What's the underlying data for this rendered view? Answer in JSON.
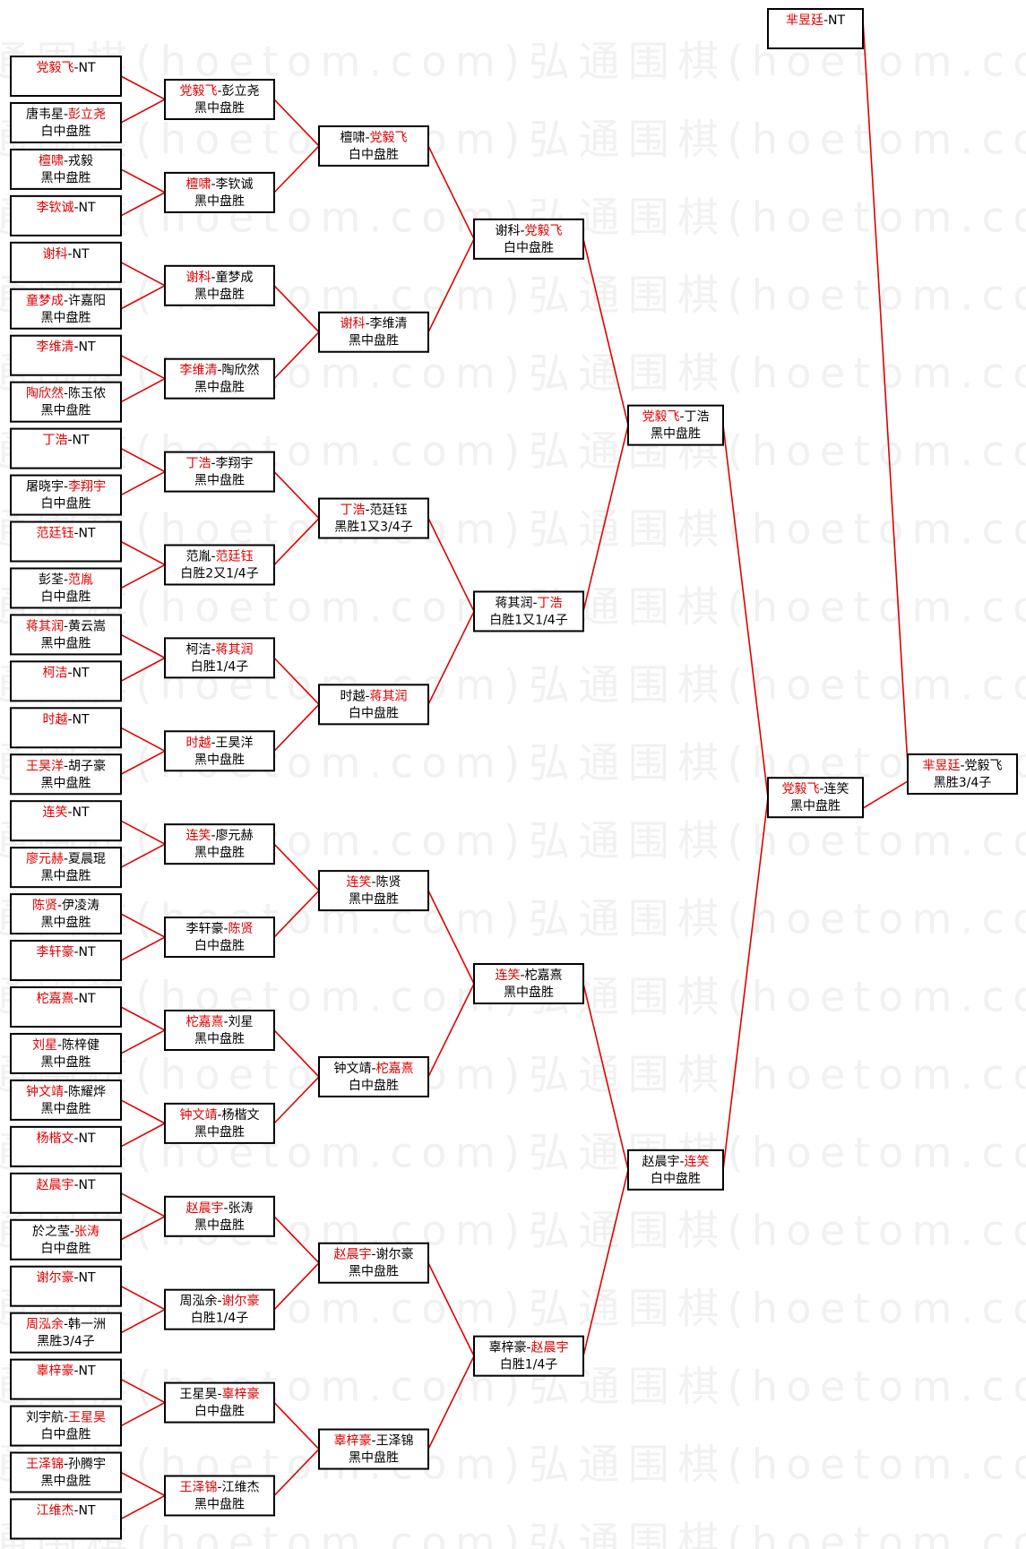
{
  "watermark": "弘通围棋(hoetom.com)",
  "separator": "-",
  "rounds": [
    [
      {
        "players": [
          "党毅飞",
          "NT"
        ],
        "winner": 0
      },
      {
        "players": [
          "唐韦星",
          "彭立尧"
        ],
        "winner": 1,
        "result": "白中盘胜"
      },
      {
        "players": [
          "檀啸",
          "戎毅"
        ],
        "winner": 0,
        "result": "黑中盘胜"
      },
      {
        "players": [
          "李钦诚",
          "NT"
        ],
        "winner": 0
      },
      {
        "players": [
          "谢科",
          "NT"
        ],
        "winner": 0
      },
      {
        "players": [
          "童梦成",
          "许嘉阳"
        ],
        "winner": 0,
        "result": "黑中盘胜"
      },
      {
        "players": [
          "李维清",
          "NT"
        ],
        "winner": 0
      },
      {
        "players": [
          "陶欣然",
          "陈玉侬"
        ],
        "winner": 0,
        "result": "黑中盘胜"
      },
      {
        "players": [
          "丁浩",
          "NT"
        ],
        "winner": 0
      },
      {
        "players": [
          "屠晓宇",
          "李翔宇"
        ],
        "winner": 1,
        "result": "白中盘胜"
      },
      {
        "players": [
          "范廷钰",
          "NT"
        ],
        "winner": 0
      },
      {
        "players": [
          "彭荃",
          "范胤"
        ],
        "winner": 1,
        "result": "白中盘胜"
      },
      {
        "players": [
          "蒋其润",
          "黄云嵩"
        ],
        "winner": 0,
        "result": "黑中盘胜"
      },
      {
        "players": [
          "柯洁",
          "NT"
        ],
        "winner": 0
      },
      {
        "players": [
          "时越",
          "NT"
        ],
        "winner": 0
      },
      {
        "players": [
          "王昊洋",
          "胡子豪"
        ],
        "winner": 0,
        "result": "黑中盘胜"
      },
      {
        "players": [
          "连笑",
          "NT"
        ],
        "winner": 0
      },
      {
        "players": [
          "廖元赫",
          "夏晨琨"
        ],
        "winner": 0,
        "result": "黑中盘胜"
      },
      {
        "players": [
          "陈贤",
          "伊凌涛"
        ],
        "winner": 0,
        "result": "黑中盘胜"
      },
      {
        "players": [
          "李轩豪",
          "NT"
        ],
        "winner": 0
      },
      {
        "players": [
          "柁嘉熹",
          "NT"
        ],
        "winner": 0
      },
      {
        "players": [
          "刘星",
          "陈梓健"
        ],
        "winner": 0,
        "result": "黑中盘胜"
      },
      {
        "players": [
          "钟文靖",
          "陈耀烨"
        ],
        "winner": 0,
        "result": "黑中盘胜"
      },
      {
        "players": [
          "杨楷文",
          "NT"
        ],
        "winner": 0
      },
      {
        "players": [
          "赵晨宇",
          "NT"
        ],
        "winner": 0
      },
      {
        "players": [
          "於之莹",
          "张涛"
        ],
        "winner": 1,
        "result": "白中盘胜"
      },
      {
        "players": [
          "谢尔豪",
          "NT"
        ],
        "winner": 0
      },
      {
        "players": [
          "周泓余",
          "韩一洲"
        ],
        "winner": 0,
        "result": "黑胜3/4子"
      },
      {
        "players": [
          "辜梓豪",
          "NT"
        ],
        "winner": 0
      },
      {
        "players": [
          "刘宇航",
          "王星昊"
        ],
        "winner": 1,
        "result": "白中盘胜"
      },
      {
        "players": [
          "王泽锦",
          "孙腾宇"
        ],
        "winner": 0,
        "result": "黑中盘胜"
      },
      {
        "players": [
          "江维杰",
          "NT"
        ],
        "winner": 0
      }
    ],
    [
      {
        "players": [
          "党毅飞",
          "彭立尧"
        ],
        "winner": 0,
        "result": "黑中盘胜"
      },
      {
        "players": [
          "檀啸",
          "李钦诚"
        ],
        "winner": 0,
        "result": "黑中盘胜"
      },
      {
        "players": [
          "谢科",
          "童梦成"
        ],
        "winner": 0,
        "result": "黑中盘胜"
      },
      {
        "players": [
          "李维清",
          "陶欣然"
        ],
        "winner": 0,
        "result": "黑中盘胜"
      },
      {
        "players": [
          "丁浩",
          "李翔宇"
        ],
        "winner": 0,
        "result": "黑中盘胜"
      },
      {
        "players": [
          "范胤",
          "范廷钰"
        ],
        "winner": 1,
        "result": "白胜2又1/4子"
      },
      {
        "players": [
          "柯洁",
          "蒋其润"
        ],
        "winner": 1,
        "result": "白胜1/4子"
      },
      {
        "players": [
          "时越",
          "王昊洋"
        ],
        "winner": 0,
        "result": "黑中盘胜"
      },
      {
        "players": [
          "连笑",
          "廖元赫"
        ],
        "winner": 0,
        "result": "黑中盘胜"
      },
      {
        "players": [
          "李轩豪",
          "陈贤"
        ],
        "winner": 1,
        "result": "白中盘胜"
      },
      {
        "players": [
          "柁嘉熹",
          "刘星"
        ],
        "winner": 0,
        "result": "黑中盘胜"
      },
      {
        "players": [
          "钟文靖",
          "杨楷文"
        ],
        "winner": 0,
        "result": "黑中盘胜"
      },
      {
        "players": [
          "赵晨宇",
          "张涛"
        ],
        "winner": 0,
        "result": "黑中盘胜"
      },
      {
        "players": [
          "周泓余",
          "谢尔豪"
        ],
        "winner": 1,
        "result": "白胜1/4子"
      },
      {
        "players": [
          "王星昊",
          "辜梓豪"
        ],
        "winner": 1,
        "result": "白中盘胜"
      },
      {
        "players": [
          "王泽锦",
          "江维杰"
        ],
        "winner": 0,
        "result": "黑中盘胜"
      }
    ],
    [
      {
        "players": [
          "檀啸",
          "党毅飞"
        ],
        "winner": 1,
        "result": "白中盘胜"
      },
      {
        "players": [
          "谢科",
          "李维清"
        ],
        "winner": 0,
        "result": "黑中盘胜"
      },
      {
        "players": [
          "丁浩",
          "范廷钰"
        ],
        "winner": 0,
        "result": "黑胜1又3/4子"
      },
      {
        "players": [
          "时越",
          "蒋其润"
        ],
        "winner": 1,
        "result": "白中盘胜"
      },
      {
        "players": [
          "连笑",
          "陈贤"
        ],
        "winner": 0,
        "result": "黑中盘胜"
      },
      {
        "players": [
          "钟文靖",
          "柁嘉熹"
        ],
        "winner": 1,
        "result": "白中盘胜"
      },
      {
        "players": [
          "赵晨宇",
          "谢尔豪"
        ],
        "winner": 0,
        "result": "黑中盘胜"
      },
      {
        "players": [
          "辜梓豪",
          "王泽锦"
        ],
        "winner": 0,
        "result": "黑中盘胜"
      }
    ],
    [
      {
        "players": [
          "谢科",
          "党毅飞"
        ],
        "winner": 1,
        "result": "白中盘胜"
      },
      {
        "players": [
          "蒋其润",
          "丁浩"
        ],
        "winner": 1,
        "result": "白胜1又1/4子"
      },
      {
        "players": [
          "连笑",
          "柁嘉熹"
        ],
        "winner": 0,
        "result": "黑中盘胜"
      },
      {
        "players": [
          "辜梓豪",
          "赵晨宇"
        ],
        "winner": 1,
        "result": "白胜1/4子"
      }
    ],
    [
      {
        "players": [
          "党毅飞",
          "丁浩"
        ],
        "winner": 0,
        "result": "黑中盘胜"
      },
      {
        "players": [
          "赵晨宇",
          "连笑"
        ],
        "winner": 1,
        "result": "白中盘胜"
      }
    ],
    [
      {
        "players": [
          "党毅飞",
          "连笑"
        ],
        "winner": 0,
        "result": "黑中盘胜"
      }
    ]
  ],
  "seed": {
    "players": [
      "芈昱廷",
      "NT"
    ],
    "winner": 0
  },
  "final": {
    "players": [
      "芈昱廷",
      "党毅飞"
    ],
    "winner": 0,
    "result": "黑胜3/4子"
  }
}
